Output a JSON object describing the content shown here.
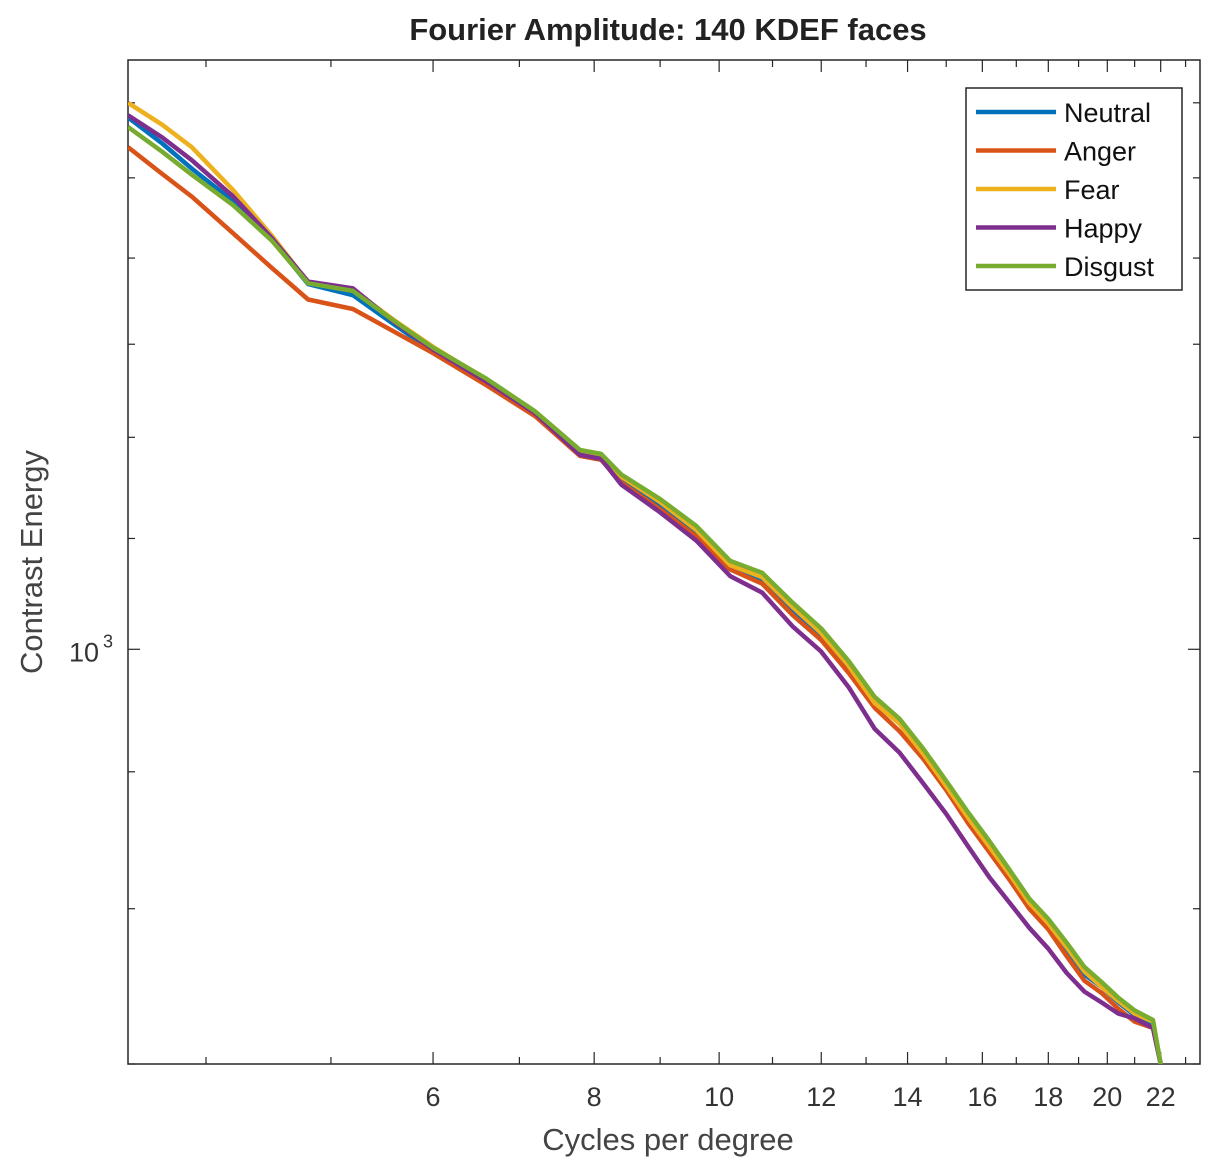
{
  "chart_data": {
    "type": "line",
    "title": "Fourier Amplitude: 140 KDEF faces",
    "xlabel": "Cycles per degree",
    "ylabel": "Contrast Energy",
    "xscale": "log",
    "yscale": "log",
    "xlim": [
      3.48,
      23.6
    ],
    "ylim": [
      700,
      1660
    ],
    "xticks": [
      6,
      8,
      10,
      12,
      14,
      16,
      18,
      20,
      22
    ],
    "xtick_labels": [
      "6",
      "8",
      "10",
      "12",
      "14",
      "16",
      "18",
      "20",
      "22"
    ],
    "yticks": [
      1000
    ],
    "ytick_labels": [
      {
        "base": "10",
        "exp": "3"
      }
    ],
    "grid": false,
    "legend_position": "top-right",
    "series": [
      {
        "name": "Neutral",
        "color": "#0072BD",
        "x": [
          3.48,
          3.7,
          3.9,
          4.2,
          4.5,
          4.8,
          5.2,
          5.6,
          6.0,
          6.6,
          7.2,
          7.8,
          8.1,
          8.4,
          9.0,
          9.6,
          10.2,
          10.8,
          11.4,
          12.0,
          12.6,
          13.2,
          13.8,
          14.4,
          15.0,
          15.6,
          16.2,
          16.8,
          17.4,
          18.0,
          18.6,
          19.2,
          19.8,
          20.4,
          21.0,
          21.7,
          22.0,
          22.4
        ],
        "y": [
          1580,
          1545,
          1512,
          1470,
          1422,
          1369,
          1356,
          1322,
          1292,
          1259,
          1224,
          1186,
          1181,
          1158,
          1132,
          1105,
          1073,
          1062,
          1035,
          1013,
          985,
          958,
          940,
          915,
          890,
          864,
          842,
          822,
          802,
          789,
          772,
          756,
          748,
          738,
          730,
          725,
          700,
          670
        ]
      },
      {
        "name": "Anger",
        "color": "#D95319",
        "x": [
          3.48,
          3.7,
          3.9,
          4.2,
          4.5,
          4.8,
          5.2,
          5.6,
          6.0,
          6.6,
          7.2,
          7.8,
          8.1,
          8.4,
          9.0,
          9.6,
          10.2,
          10.8,
          11.4,
          12.0,
          12.6,
          13.2,
          13.8,
          14.4,
          15.0,
          15.6,
          16.2,
          16.8,
          17.4,
          18.0,
          18.6,
          19.2,
          19.8,
          20.4,
          21.0,
          21.7,
          22.0,
          22.4
        ],
        "y": [
          1540,
          1505,
          1476,
          1430,
          1388,
          1351,
          1340,
          1314,
          1290,
          1255,
          1222,
          1181,
          1177,
          1154,
          1128,
          1102,
          1071,
          1058,
          1030,
          1008,
          980,
          951,
          932,
          910,
          886,
          861,
          840,
          820,
          800,
          786,
          768,
          752,
          744,
          734,
          726,
          722,
          700,
          670
        ]
      },
      {
        "name": "Fear",
        "color": "#EDB120",
        "x": [
          3.48,
          3.7,
          3.9,
          4.2,
          4.5,
          4.8,
          5.2,
          5.6,
          6.0,
          6.6,
          7.2,
          7.8,
          8.1,
          8.4,
          9.0,
          9.6,
          10.2,
          10.8,
          11.4,
          12.0,
          12.6,
          13.2,
          13.8,
          14.4,
          15.0,
          15.6,
          16.2,
          16.8,
          17.4,
          18.0,
          18.6,
          19.2,
          19.8,
          20.4,
          21.0,
          21.7,
          22.0,
          22.4
        ],
        "y": [
          1600,
          1570,
          1540,
          1484,
          1427,
          1371,
          1362,
          1327,
          1297,
          1261,
          1226,
          1186,
          1182,
          1160,
          1135,
          1108,
          1075,
          1064,
          1037,
          1014,
          986,
          955,
          938,
          914,
          889,
          865,
          844,
          824,
          804,
          790,
          774,
          758,
          748,
          739,
          731,
          726,
          700,
          670
        ]
      },
      {
        "name": "Happy",
        "color": "#7E2F8E",
        "x": [
          3.48,
          3.7,
          3.9,
          4.2,
          4.5,
          4.8,
          5.2,
          5.6,
          6.0,
          6.6,
          7.2,
          7.8,
          8.1,
          8.4,
          9.0,
          9.6,
          10.2,
          10.8,
          11.4,
          12.0,
          12.6,
          13.2,
          13.8,
          14.4,
          15.0,
          15.6,
          16.2,
          16.8,
          17.4,
          18.0,
          18.6,
          19.2,
          19.8,
          20.4,
          21.0,
          21.7,
          22.0,
          22.4
        ],
        "y": [
          1583,
          1553,
          1523,
          1476,
          1424,
          1372,
          1364,
          1325,
          1294,
          1259,
          1225,
          1182,
          1178,
          1152,
          1125,
          1098,
          1065,
          1050,
          1020,
          998,
          968,
          934,
          915,
          891,
          868,
          844,
          822,
          804,
          787,
          773,
          757,
          745,
          738,
          731,
          728,
          722,
          700,
          670
        ]
      },
      {
        "name": "Disgust",
        "color": "#77AC30",
        "x": [
          3.48,
          3.7,
          3.9,
          4.2,
          4.5,
          4.8,
          5.2,
          5.6,
          6.0,
          6.6,
          7.2,
          7.8,
          8.1,
          8.4,
          9.0,
          9.6,
          10.2,
          10.8,
          11.4,
          12.0,
          12.6,
          13.2,
          13.8,
          14.4,
          15.0,
          15.6,
          16.2,
          16.8,
          17.4,
          18.0,
          18.6,
          19.2,
          19.8,
          20.4,
          21.0,
          21.7,
          22.0,
          22.4
        ],
        "y": [
          1567,
          1534,
          1504,
          1465,
          1421,
          1370,
          1361,
          1326,
          1296,
          1262,
          1227,
          1187,
          1183,
          1162,
          1138,
          1112,
          1079,
          1068,
          1041,
          1018,
          990,
          960,
          942,
          918,
          893,
          869,
          848,
          827,
          807,
          793,
          777,
          761,
          751,
          741,
          733,
          727,
          700,
          670
        ]
      }
    ]
  }
}
